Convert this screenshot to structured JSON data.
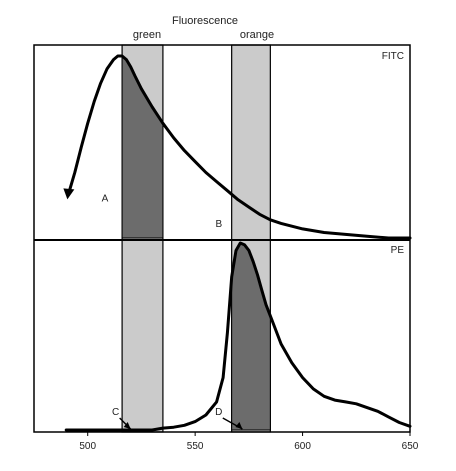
{
  "chart_data": [
    {
      "type": "area",
      "panel": "top",
      "title": "Fluorescence",
      "series": [
        {
          "name": "FITC",
          "x": [
            491,
            494,
            497,
            500,
            503,
            506,
            509,
            512,
            514,
            516,
            518,
            520,
            522,
            525,
            530,
            535,
            540,
            545,
            550,
            555,
            560,
            565,
            570,
            575,
            580,
            585,
            590,
            600,
            610,
            620,
            630,
            640,
            650
          ],
          "y": [
            0.24,
            0.36,
            0.5,
            0.63,
            0.75,
            0.85,
            0.93,
            0.98,
            1.0,
            1.0,
            0.98,
            0.94,
            0.89,
            0.82,
            0.72,
            0.63,
            0.55,
            0.48,
            0.42,
            0.36,
            0.31,
            0.26,
            0.21,
            0.17,
            0.13,
            0.1,
            0.08,
            0.05,
            0.03,
            0.02,
            0.01,
            0.0,
            0.0
          ]
        }
      ],
      "bands": [
        {
          "name": "green",
          "range": [
            516,
            535
          ]
        },
        {
          "name": "orange",
          "range": [
            567,
            585
          ]
        }
      ],
      "point_labels": [
        {
          "text": "A",
          "x": 508,
          "y": 0.2
        },
        {
          "text": "B",
          "x": 561,
          "y": 0.06
        }
      ],
      "ylim": [
        0,
        1
      ]
    },
    {
      "type": "area",
      "panel": "bottom",
      "series": [
        {
          "name": "PE",
          "x": [
            490,
            500,
            510,
            520,
            525,
            530,
            535,
            540,
            545,
            550,
            555,
            560,
            563,
            565,
            567,
            569,
            571,
            573,
            575,
            577,
            579,
            581,
            583,
            586,
            590,
            595,
            600,
            605,
            610,
            615,
            620,
            625,
            630,
            635,
            640,
            645,
            650
          ],
          "y": [
            0.0,
            0.0,
            0.0,
            0.0,
            0.0,
            0.0,
            0.01,
            0.015,
            0.025,
            0.045,
            0.08,
            0.15,
            0.28,
            0.52,
            0.82,
            0.96,
            1.0,
            0.99,
            0.96,
            0.9,
            0.83,
            0.75,
            0.67,
            0.58,
            0.46,
            0.36,
            0.28,
            0.22,
            0.18,
            0.16,
            0.15,
            0.14,
            0.12,
            0.1,
            0.07,
            0.04,
            0.02
          ]
        }
      ],
      "bands": [
        {
          "name": "green",
          "range": [
            516,
            535
          ]
        },
        {
          "name": "orange",
          "range": [
            567,
            585
          ]
        }
      ],
      "point_labels": [
        {
          "text": "C",
          "x": 513,
          "y": 0.08
        },
        {
          "text": "D",
          "x": 561,
          "y": 0.08
        }
      ],
      "xlim": [
        475,
        650
      ],
      "ylim": [
        0,
        1
      ],
      "x_ticks": [
        500,
        550,
        600,
        650
      ]
    }
  ],
  "colors": {
    "background": "#ffffff",
    "frame": "#000000",
    "curve": "#000000",
    "band_light": "#cbcbcb",
    "band_dark": "#6c6c6c"
  }
}
